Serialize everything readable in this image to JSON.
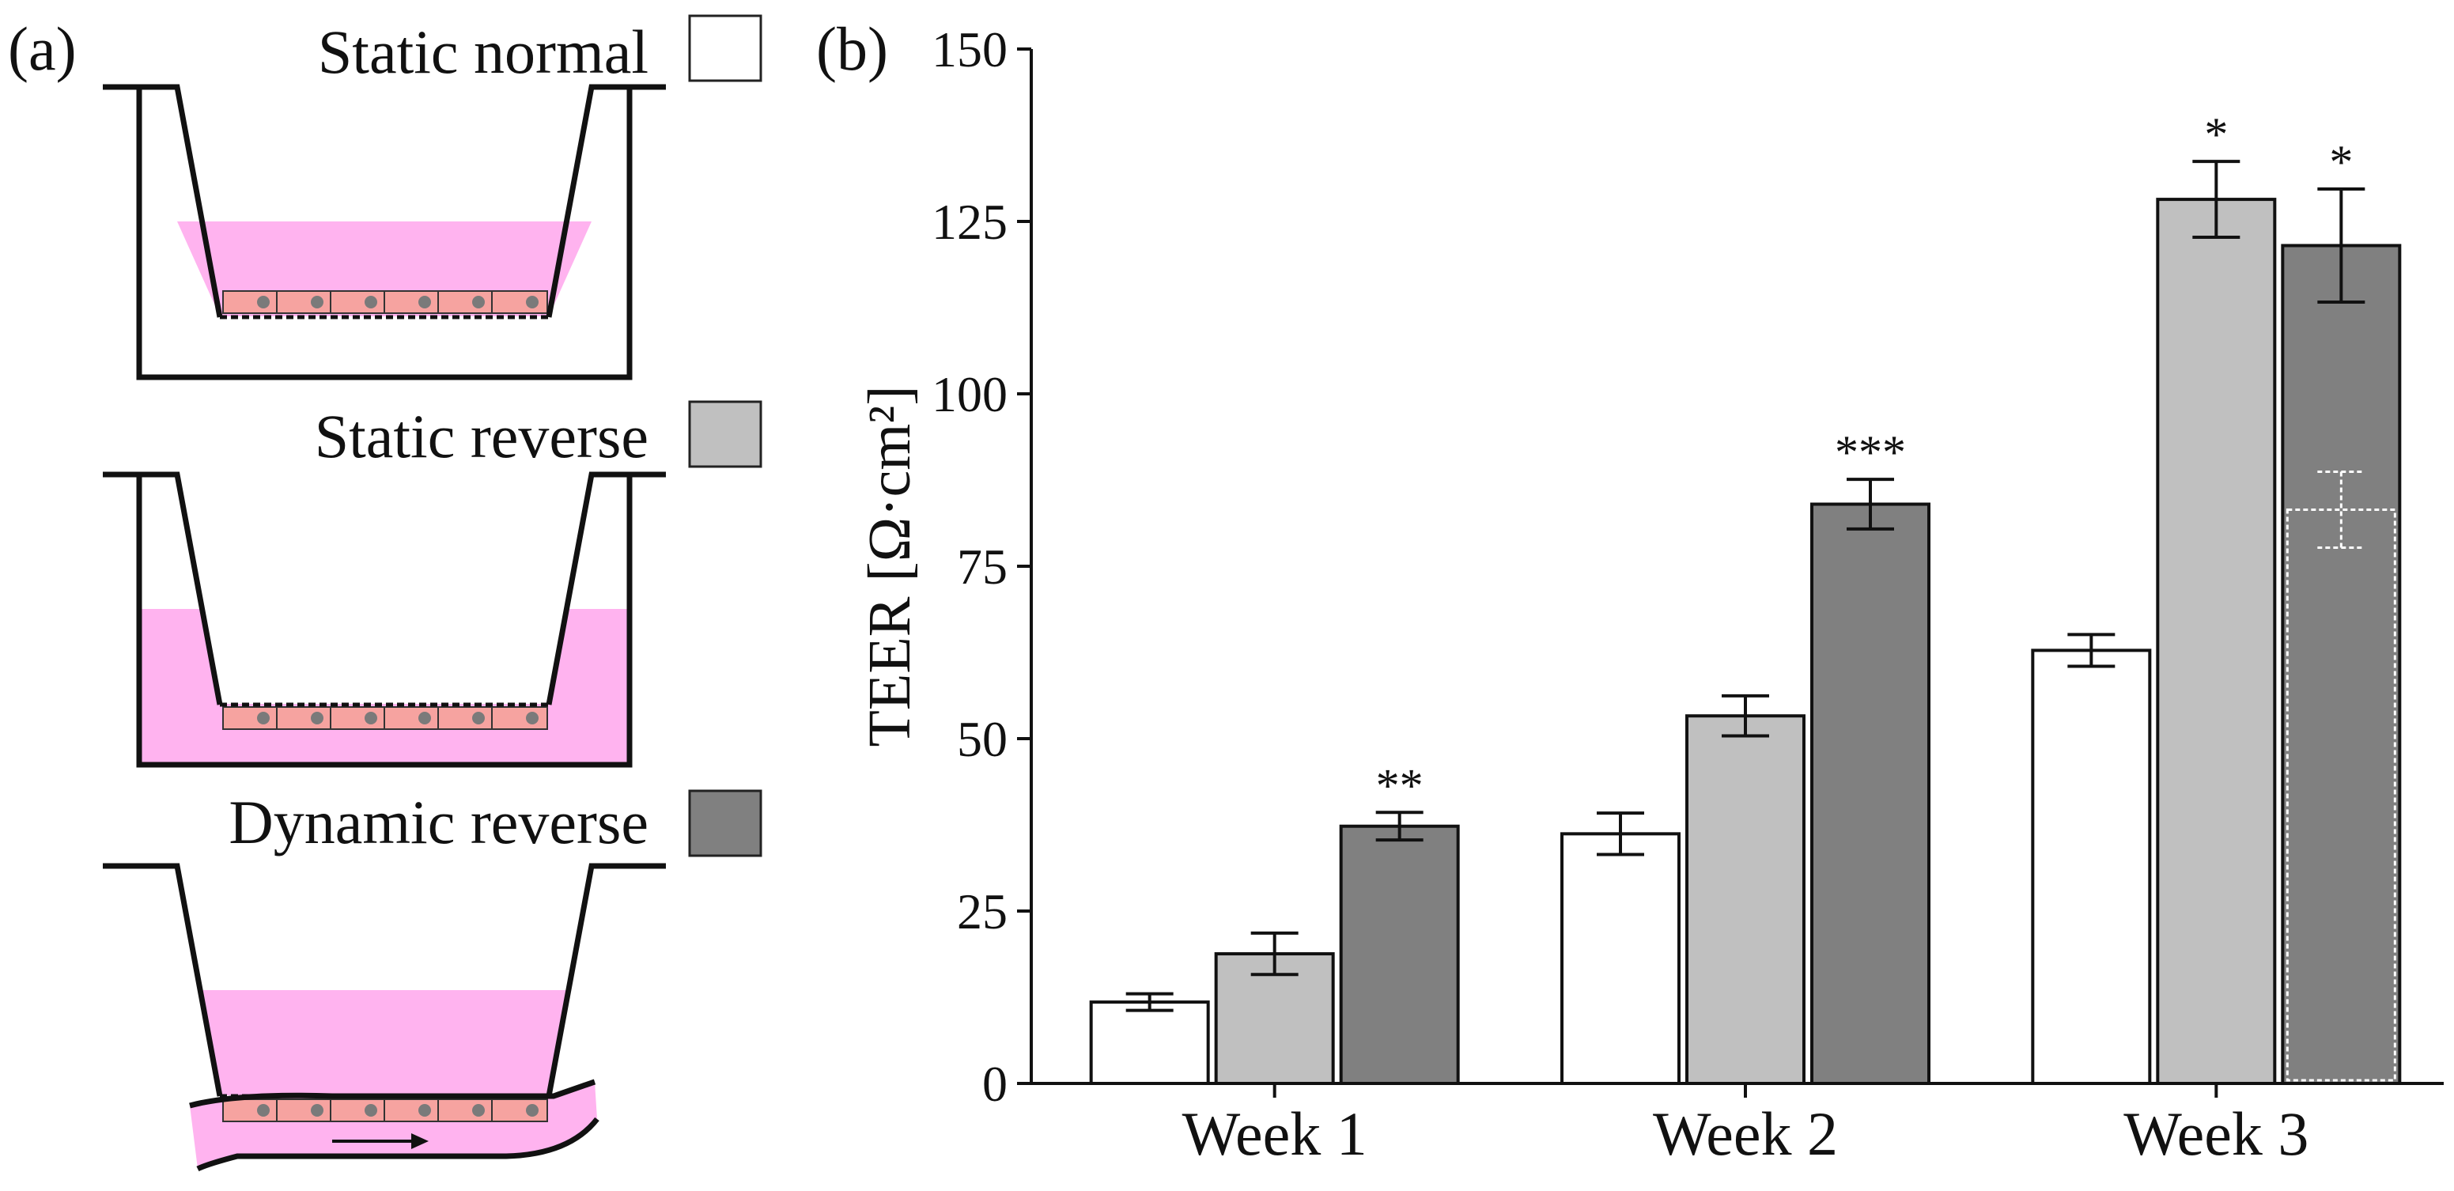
{
  "panel_a": {
    "label": "(a)",
    "legend": [
      {
        "label": "Static normal",
        "color": "#ffffff",
        "config": "normal"
      },
      {
        "label": "Static reverse",
        "color": "#c0c0c0",
        "config": "reverse"
      },
      {
        "label": "Dynamic reverse",
        "color": "#808080",
        "config": "dynamic"
      }
    ],
    "medium_color": "#ffb3ef",
    "cell_color": "#f6a3a0",
    "nucleus_color": "#7a7a7a"
  },
  "panel_b": {
    "label": "(b)"
  },
  "chart_data": {
    "type": "bar",
    "title": "",
    "xlabel": "",
    "ylabel": "TEER [Ω·cm²]",
    "ylim": [
      0,
      150
    ],
    "yticks": [
      0,
      25,
      50,
      75,
      100,
      125,
      150
    ],
    "categories": [
      "Week 1",
      "Week 2",
      "Week 3"
    ],
    "series": [
      {
        "name": "Static normal",
        "color": "#ffffff",
        "values": [
          11.8,
          36.2,
          62.8
        ],
        "errors": [
          1.2,
          3.0,
          2.3
        ],
        "significance": [
          "",
          "",
          ""
        ]
      },
      {
        "name": "Static reverse",
        "color": "#c0c0c0",
        "values": [
          18.8,
          53.3,
          128.2
        ],
        "errors": [
          3.0,
          2.9,
          5.5
        ],
        "significance": [
          "",
          "",
          "*"
        ]
      },
      {
        "name": "Dynamic reverse",
        "color": "#808080",
        "values": [
          37.3,
          84.0,
          121.5
        ],
        "errors": [
          2.0,
          3.6,
          8.2
        ],
        "significance": [
          "**",
          "***",
          "*"
        ]
      }
    ],
    "overlay": {
      "category": "Week 3",
      "series": "Dynamic reverse",
      "value": 83.2,
      "error": 5.5
    }
  }
}
